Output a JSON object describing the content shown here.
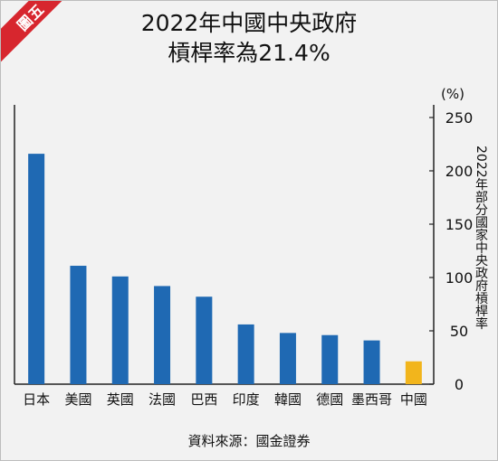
{
  "badge": "圖五",
  "title": [
    "2022年中國中央政府",
    "槓桿率為21.4%"
  ],
  "unit": "(%)",
  "source": "資料來源：國金證券",
  "colors": {
    "bar": "#1f69b3",
    "highlight": "#f2b51c",
    "badge": "#d7262e"
  },
  "chart_data": {
    "type": "bar",
    "title": "2022年中國中央政府槓桿率為21.4%",
    "ylabel": "2022年部分國家中央政府槓桿率",
    "yunit": "(%)",
    "ylim": [
      0,
      250
    ],
    "yticks": [
      0,
      50,
      100,
      150,
      200,
      250
    ],
    "y_axis_position": "right",
    "grid": false,
    "categories": [
      "日本",
      "美國",
      "英國",
      "法國",
      "巴西",
      "印度",
      "韓國",
      "德國",
      "墨西哥",
      "中國"
    ],
    "values": [
      216,
      111,
      101,
      92,
      82,
      56,
      48,
      46,
      41,
      21.4
    ],
    "highlight": "中國"
  }
}
